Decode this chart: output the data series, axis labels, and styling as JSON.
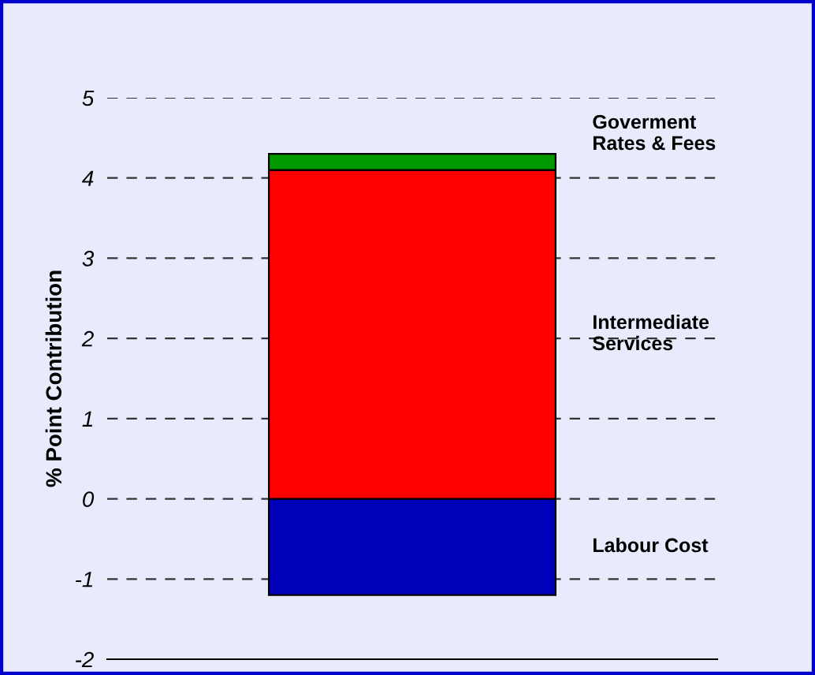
{
  "chart_data": {
    "type": "bar",
    "stacked": true,
    "categories": [
      null
    ],
    "series": [
      {
        "name": "Labour Cost",
        "color": "#0000bb",
        "values": [
          -1.2
        ]
      },
      {
        "name": "Intermediate\nServices",
        "color": "#ff0000",
        "values": [
          4.1
        ]
      },
      {
        "name": "Goverment\nRates & Fees",
        "color": "#009900",
        "values": [
          0.2
        ]
      }
    ],
    "ylabel": "% Point Contribution",
    "ylim": [
      -2,
      5
    ],
    "yticks": [
      -2,
      -1,
      0,
      1,
      2,
      3,
      4,
      5
    ],
    "grid": "y",
    "line_style": "dashed",
    "tick_labels": "y"
  }
}
